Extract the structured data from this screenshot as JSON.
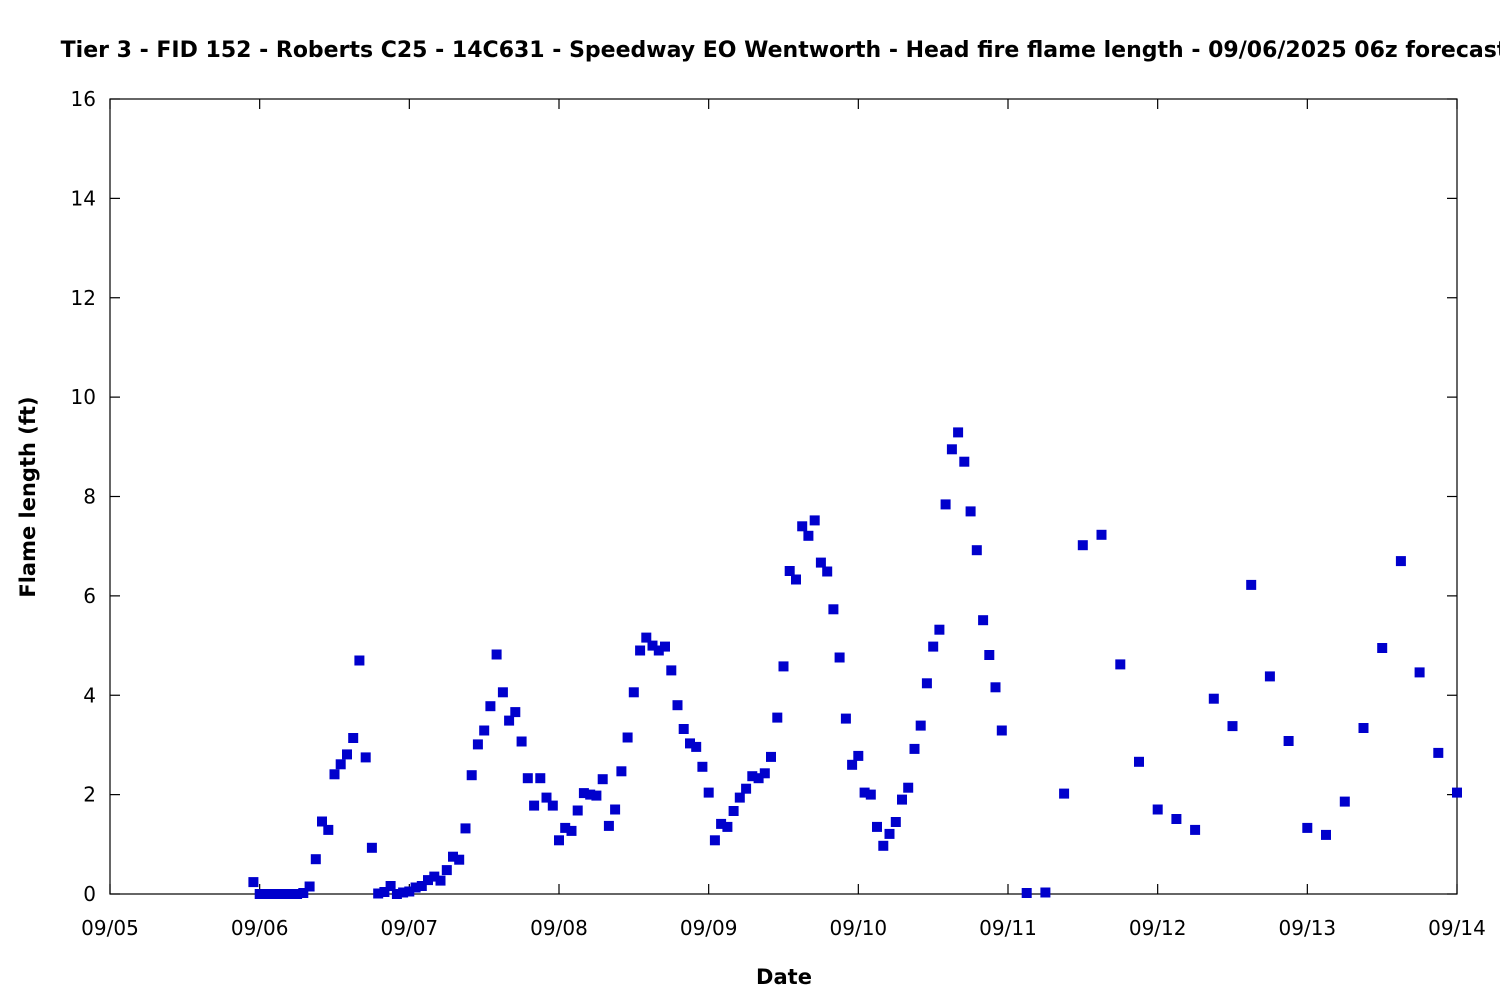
{
  "chart_data": {
    "type": "scatter",
    "title": "Tier 3 - FID 152 - Roberts C25 - 14C631 - Speedway EO Wentworth - Head fire flame length - 09/06/2025 06z forecast",
    "xlabel": "Date",
    "ylabel": "Flame length (ft)",
    "xlim": [
      "2025-09-05 00:00",
      "2025-09-14 00:00"
    ],
    "ylim": [
      0,
      16
    ],
    "x_ticks": [
      "09/05",
      "09/06",
      "09/07",
      "09/08",
      "09/09",
      "09/10",
      "09/11",
      "09/12",
      "09/13",
      "09/14"
    ],
    "y_ticks": [
      "0",
      "2",
      "4",
      "6",
      "8",
      "10",
      "12",
      "14",
      "16"
    ],
    "grid": false,
    "legend": "none",
    "marker": "square",
    "color": "#0000cc",
    "series": [
      {
        "points": [
          [
            "2025-09-05 23:00",
            0.24
          ],
          [
            "2025-09-06 00:00",
            0.0
          ],
          [
            "2025-09-06 01:00",
            0.0
          ],
          [
            "2025-09-06 02:00",
            0.0
          ],
          [
            "2025-09-06 03:00",
            0.0
          ],
          [
            "2025-09-06 04:00",
            0.0
          ],
          [
            "2025-09-06 05:00",
            0.0
          ],
          [
            "2025-09-06 06:00",
            0.0
          ],
          [
            "2025-09-06 07:00",
            0.02
          ],
          [
            "2025-09-06 08:00",
            0.15
          ],
          [
            "2025-09-06 09:00",
            0.7
          ],
          [
            "2025-09-06 10:00",
            1.46
          ],
          [
            "2025-09-06 11:00",
            1.29
          ],
          [
            "2025-09-06 12:00",
            2.41
          ],
          [
            "2025-09-06 13:00",
            2.61
          ],
          [
            "2025-09-06 14:00",
            2.81
          ],
          [
            "2025-09-06 15:00",
            3.14
          ],
          [
            "2025-09-06 16:00",
            4.7
          ],
          [
            "2025-09-06 17:00",
            2.75
          ],
          [
            "2025-09-06 18:00",
            0.93
          ],
          [
            "2025-09-06 19:00",
            0.01
          ],
          [
            "2025-09-06 20:00",
            0.04
          ],
          [
            "2025-09-06 21:00",
            0.16
          ],
          [
            "2025-09-06 22:00",
            0.0
          ],
          [
            "2025-09-06 23:00",
            0.03
          ],
          [
            "2025-09-07 00:00",
            0.05
          ],
          [
            "2025-09-07 01:00",
            0.13
          ],
          [
            "2025-09-07 02:00",
            0.16
          ],
          [
            "2025-09-07 03:00",
            0.28
          ],
          [
            "2025-09-07 04:00",
            0.35
          ],
          [
            "2025-09-07 05:00",
            0.27
          ],
          [
            "2025-09-07 06:00",
            0.48
          ],
          [
            "2025-09-07 07:00",
            0.75
          ],
          [
            "2025-09-07 08:00",
            0.69
          ],
          [
            "2025-09-07 09:00",
            1.32
          ],
          [
            "2025-09-07 10:00",
            2.39
          ],
          [
            "2025-09-07 11:00",
            3.01
          ],
          [
            "2025-09-07 12:00",
            3.29
          ],
          [
            "2025-09-07 13:00",
            3.78
          ],
          [
            "2025-09-07 14:00",
            4.82
          ],
          [
            "2025-09-07 15:00",
            4.06
          ],
          [
            "2025-09-07 16:00",
            3.49
          ],
          [
            "2025-09-07 17:00",
            3.66
          ],
          [
            "2025-09-07 18:00",
            3.07
          ],
          [
            "2025-09-07 19:00",
            2.33
          ],
          [
            "2025-09-07 20:00",
            1.78
          ],
          [
            "2025-09-07 21:00",
            2.33
          ],
          [
            "2025-09-07 22:00",
            1.94
          ],
          [
            "2025-09-07 23:00",
            1.78
          ],
          [
            "2025-09-08 00:00",
            1.08
          ],
          [
            "2025-09-08 01:00",
            1.33
          ],
          [
            "2025-09-08 02:00",
            1.27
          ],
          [
            "2025-09-08 03:00",
            1.68
          ],
          [
            "2025-09-08 04:00",
            2.03
          ],
          [
            "2025-09-08 05:00",
            2.0
          ],
          [
            "2025-09-08 06:00",
            1.98
          ],
          [
            "2025-09-08 07:00",
            2.31
          ],
          [
            "2025-09-08 08:00",
            1.37
          ],
          [
            "2025-09-08 09:00",
            1.7
          ],
          [
            "2025-09-08 10:00",
            2.47
          ],
          [
            "2025-09-08 11:00",
            3.15
          ],
          [
            "2025-09-08 12:00",
            4.06
          ],
          [
            "2025-09-08 13:00",
            4.9
          ],
          [
            "2025-09-08 14:00",
            5.16
          ],
          [
            "2025-09-08 15:00",
            5.0
          ],
          [
            "2025-09-08 16:00",
            4.9
          ],
          [
            "2025-09-08 17:00",
            4.98
          ],
          [
            "2025-09-08 18:00",
            4.5
          ],
          [
            "2025-09-08 19:00",
            3.8
          ],
          [
            "2025-09-08 20:00",
            3.32
          ],
          [
            "2025-09-08 21:00",
            3.03
          ],
          [
            "2025-09-08 22:00",
            2.96
          ],
          [
            "2025-09-08 23:00",
            2.56
          ],
          [
            "2025-09-09 00:00",
            2.04
          ],
          [
            "2025-09-09 01:00",
            1.08
          ],
          [
            "2025-09-09 02:00",
            1.41
          ],
          [
            "2025-09-09 03:00",
            1.35
          ],
          [
            "2025-09-09 04:00",
            1.67
          ],
          [
            "2025-09-09 05:00",
            1.94
          ],
          [
            "2025-09-09 06:00",
            2.12
          ],
          [
            "2025-09-09 07:00",
            2.37
          ],
          [
            "2025-09-09 08:00",
            2.33
          ],
          [
            "2025-09-09 09:00",
            2.43
          ],
          [
            "2025-09-09 10:00",
            2.76
          ],
          [
            "2025-09-09 11:00",
            3.55
          ],
          [
            "2025-09-09 12:00",
            4.58
          ],
          [
            "2025-09-09 13:00",
            6.5
          ],
          [
            "2025-09-09 14:00",
            6.33
          ],
          [
            "2025-09-09 15:00",
            7.4
          ],
          [
            "2025-09-09 16:00",
            7.21
          ],
          [
            "2025-09-09 17:00",
            7.52
          ],
          [
            "2025-09-09 18:00",
            6.67
          ],
          [
            "2025-09-09 19:00",
            6.49
          ],
          [
            "2025-09-09 20:00",
            5.73
          ],
          [
            "2025-09-09 21:00",
            4.76
          ],
          [
            "2025-09-09 22:00",
            3.53
          ],
          [
            "2025-09-09 23:00",
            2.6
          ],
          [
            "2025-09-10 00:00",
            2.78
          ],
          [
            "2025-09-10 01:00",
            2.04
          ],
          [
            "2025-09-10 02:00",
            2.0
          ],
          [
            "2025-09-10 03:00",
            1.35
          ],
          [
            "2025-09-10 04:00",
            0.97
          ],
          [
            "2025-09-10 05:00",
            1.21
          ],
          [
            "2025-09-10 06:00",
            1.45
          ],
          [
            "2025-09-10 07:00",
            1.9
          ],
          [
            "2025-09-10 08:00",
            2.14
          ],
          [
            "2025-09-10 09:00",
            2.92
          ],
          [
            "2025-09-10 10:00",
            3.39
          ],
          [
            "2025-09-10 11:00",
            4.24
          ],
          [
            "2025-09-10 12:00",
            4.98
          ],
          [
            "2025-09-10 13:00",
            5.32
          ],
          [
            "2025-09-10 14:00",
            7.84
          ],
          [
            "2025-09-10 15:00",
            8.95
          ],
          [
            "2025-09-10 16:00",
            9.29
          ],
          [
            "2025-09-10 17:00",
            8.7
          ],
          [
            "2025-09-10 18:00",
            7.7
          ],
          [
            "2025-09-10 19:00",
            6.92
          ],
          [
            "2025-09-10 20:00",
            5.51
          ],
          [
            "2025-09-10 21:00",
            4.81
          ],
          [
            "2025-09-10 22:00",
            4.16
          ],
          [
            "2025-09-10 23:00",
            3.29
          ],
          [
            "2025-09-11 03:00",
            0.02
          ],
          [
            "2025-09-11 06:00",
            0.03
          ],
          [
            "2025-09-11 09:00",
            2.02
          ],
          [
            "2025-09-11 12:00",
            7.02
          ],
          [
            "2025-09-11 15:00",
            7.23
          ],
          [
            "2025-09-11 18:00",
            4.62
          ],
          [
            "2025-09-11 21:00",
            2.66
          ],
          [
            "2025-09-12 00:00",
            1.7
          ],
          [
            "2025-09-12 03:00",
            1.51
          ],
          [
            "2025-09-12 06:00",
            1.29
          ],
          [
            "2025-09-12 09:00",
            3.93
          ],
          [
            "2025-09-12 12:00",
            3.38
          ],
          [
            "2025-09-12 15:00",
            6.22
          ],
          [
            "2025-09-12 18:00",
            4.38
          ],
          [
            "2025-09-12 21:00",
            3.08
          ],
          [
            "2025-09-13 00:00",
            1.33
          ],
          [
            "2025-09-13 03:00",
            1.19
          ],
          [
            "2025-09-13 06:00",
            1.86
          ],
          [
            "2025-09-13 09:00",
            3.34
          ],
          [
            "2025-09-13 12:00",
            4.95
          ],
          [
            "2025-09-13 15:00",
            6.7
          ],
          [
            "2025-09-13 18:00",
            4.46
          ],
          [
            "2025-09-13 21:00",
            2.84
          ],
          [
            "2025-09-14 00:00",
            2.04
          ]
        ]
      }
    ]
  }
}
